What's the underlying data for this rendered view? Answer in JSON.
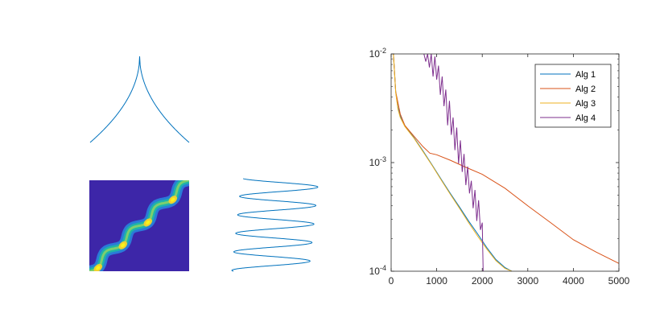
{
  "chart_data": [
    {
      "type": "line",
      "description_panel": "top-left",
      "x": [
        -1,
        -0.8,
        -0.6,
        -0.4,
        -0.2,
        -0.1,
        -0.03,
        0,
        0.03,
        0.1,
        0.2,
        0.4,
        0.6,
        0.8,
        1
      ],
      "y": [
        0,
        0.19,
        0.38,
        0.56,
        0.74,
        0.83,
        0.92,
        1.0,
        0.92,
        0.83,
        0.74,
        0.56,
        0.38,
        0.19,
        0
      ],
      "color": "#0072BD"
    },
    {
      "type": "heatmap",
      "colormap": "parula",
      "band": "diagonal band from bottom-left to top-right with periodic bright nodes",
      "nodes": 4
    },
    {
      "type": "line",
      "color": "#0072BD",
      "turns": 10
    },
    {
      "type": "line",
      "xlim": [
        0,
        5000
      ],
      "ylim": [
        0.0001,
        0.01
      ],
      "yscale": "log",
      "x_ticks": [
        "0",
        "1000",
        "2000",
        "3000",
        "4000",
        "5000"
      ],
      "y_ticks": [
        "10-2",
        "10-3",
        "10-4"
      ],
      "legend_position": "top-right",
      "series": [
        {
          "name": "Alg 1",
          "color": "#0072BD",
          "x": [
            50,
            100,
            150,
            200,
            300,
            500,
            700,
            900,
            1100,
            1300,
            1500,
            1700,
            1900,
            2100,
            2300,
            2500,
            2650
          ],
          "y": [
            0.01,
            0.0045,
            0.0032,
            0.0027,
            0.0022,
            0.0017,
            0.00128,
            0.00095,
            0.0007,
            0.00052,
            0.00039,
            0.00029,
            0.00022,
            0.000165,
            0.000128,
            0.000108,
            0.0001
          ]
        },
        {
          "name": "Alg 2",
          "color": "#D95319",
          "x": [
            50,
            100,
            200,
            300,
            500,
            700,
            850,
            1000,
            1300,
            1600,
            2000,
            2500,
            3000,
            3500,
            4000,
            4500,
            5000
          ],
          "y": [
            0.01,
            0.0045,
            0.0028,
            0.0022,
            0.00175,
            0.0014,
            0.00122,
            0.00118,
            0.00105,
            0.00092,
            0.00078,
            0.00058,
            0.0004,
            0.00028,
            0.000195,
            0.00015,
            0.000118
          ]
        },
        {
          "name": "Alg 3",
          "color": "#EDB120",
          "x": [
            50,
            100,
            150,
            200,
            300,
            500,
            700,
            900,
            1100,
            1300,
            1500,
            1700,
            1900,
            2100,
            2300,
            2500,
            2650
          ],
          "y": [
            0.01,
            0.0044,
            0.0031,
            0.0026,
            0.00215,
            0.00168,
            0.00126,
            0.00094,
            0.00069,
            0.00051,
            0.00038,
            0.00028,
            0.00021,
            0.00016,
            0.000125,
            0.000106,
            0.0001
          ]
        },
        {
          "name": "Alg 4",
          "color": "#7E2F8E",
          "x": [
            720,
            760,
            800,
            840,
            880,
            920,
            960,
            1000,
            1040,
            1080,
            1120,
            1160,
            1200,
            1240,
            1280,
            1320,
            1360,
            1400,
            1440,
            1480,
            1520,
            1560,
            1600,
            1640,
            1680,
            1720,
            1760,
            1800,
            1840,
            1880,
            1920,
            1960,
            2000,
            2020
          ],
          "y": [
            0.01,
            0.0085,
            0.01,
            0.0075,
            0.01,
            0.0062,
            0.0095,
            0.0058,
            0.0078,
            0.0042,
            0.0062,
            0.0033,
            0.0047,
            0.0022,
            0.0037,
            0.0018,
            0.0026,
            0.0013,
            0.0021,
            0.00098,
            0.0016,
            0.00082,
            0.0012,
            0.00062,
            0.00092,
            0.00052,
            0.00068,
            0.00038,
            0.00056,
            0.00029,
            0.00045,
            0.00024,
            0.00028,
            0.0001
          ]
        }
      ]
    }
  ]
}
